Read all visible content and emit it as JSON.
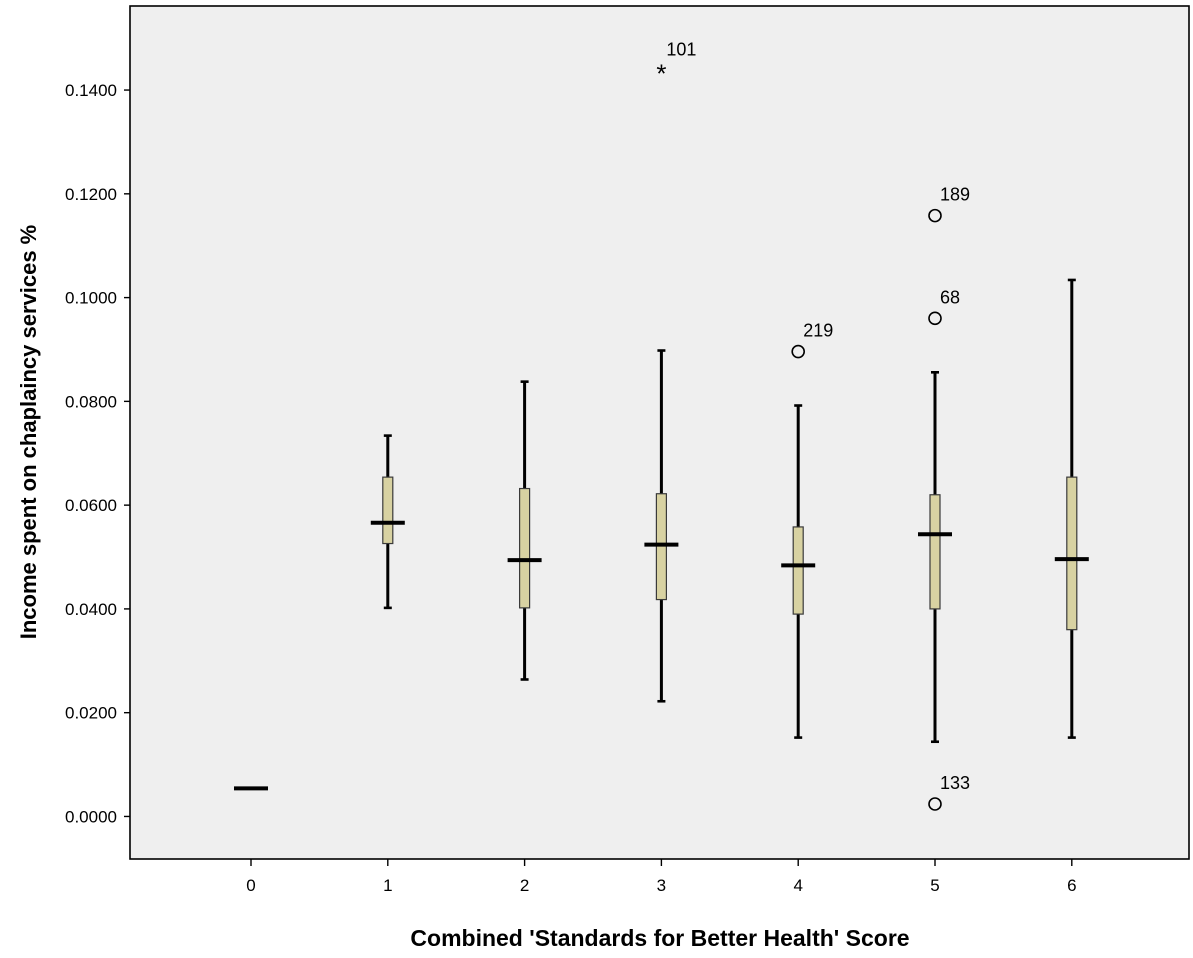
{
  "chart_data": {
    "type": "boxplot",
    "title": "",
    "xlabel": "Combined 'Standards for Better Health' Score",
    "ylabel": "Income spent on chaplaincy services %",
    "ylim": [
      -0.0082,
      0.1562
    ],
    "y_ticks": [
      "0.0000",
      "0.0200",
      "0.0400",
      "0.0600",
      "0.0800",
      "0.1000",
      "0.1200",
      "0.1400"
    ],
    "y_tick_values": [
      0.0,
      0.02,
      0.04,
      0.06,
      0.08,
      0.1,
      0.12,
      0.14
    ],
    "categories": [
      "0",
      "1",
      "2",
      "3",
      "4",
      "5",
      "6"
    ],
    "grid": false,
    "legend": "none",
    "colors": {
      "plot_background": "#efefef",
      "box_fill": "#d8d2a2",
      "box_stroke": "#3a3a3a",
      "line": "#000000"
    },
    "boxes": [
      {
        "category": "0",
        "whisker_low": 0.0054,
        "q1": 0.0054,
        "median": 0.0054,
        "q3": 0.0054,
        "whisker_high": 0.0054
      },
      {
        "category": "1",
        "whisker_low": 0.0402,
        "q1": 0.0526,
        "median": 0.0566,
        "q3": 0.0654,
        "whisker_high": 0.0734
      },
      {
        "category": "2",
        "whisker_low": 0.0264,
        "q1": 0.0402,
        "median": 0.0494,
        "q3": 0.0632,
        "whisker_high": 0.0838
      },
      {
        "category": "3",
        "whisker_low": 0.0222,
        "q1": 0.0418,
        "median": 0.0524,
        "q3": 0.0622,
        "whisker_high": 0.0898
      },
      {
        "category": "4",
        "whisker_low": 0.0152,
        "q1": 0.039,
        "median": 0.0484,
        "q3": 0.0558,
        "whisker_high": 0.0792
      },
      {
        "category": "5",
        "whisker_low": 0.0144,
        "q1": 0.04,
        "median": 0.0544,
        "q3": 0.062,
        "whisker_high": 0.0856
      },
      {
        "category": "6",
        "whisker_low": 0.0152,
        "q1": 0.036,
        "median": 0.0496,
        "q3": 0.0654,
        "whisker_high": 0.1034
      }
    ],
    "outliers": [
      {
        "category": "3",
        "value": 0.1438,
        "label": "101",
        "marker": "star"
      },
      {
        "category": "4",
        "value": 0.0896,
        "label": "219",
        "marker": "circle"
      },
      {
        "category": "5",
        "value": 0.1158,
        "label": "189",
        "marker": "circle"
      },
      {
        "category": "5",
        "value": 0.096,
        "label": "68",
        "marker": "circle"
      },
      {
        "category": "5",
        "value": 0.0024,
        "label": "133",
        "marker": "circle"
      }
    ]
  }
}
